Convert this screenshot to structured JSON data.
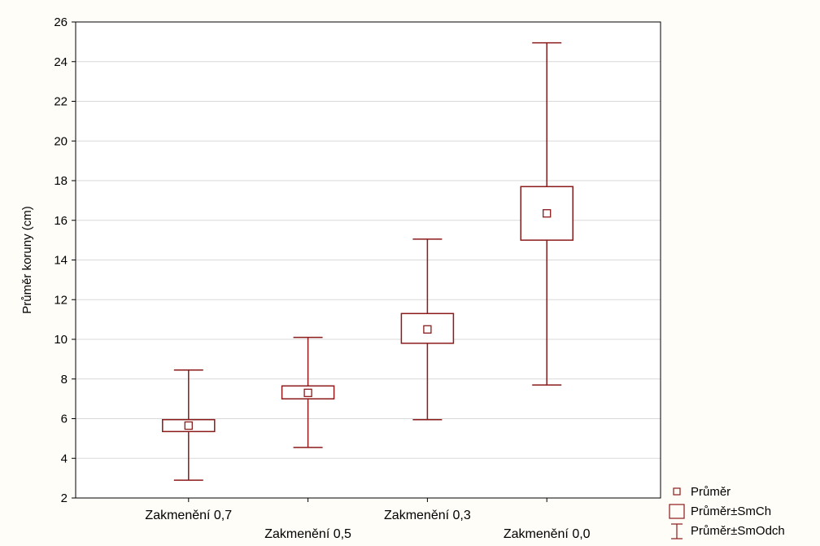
{
  "chart_data": {
    "type": "box",
    "ylabel": "Průměr koruny (cm)",
    "ylim": [
      2,
      26
    ],
    "yticks": [
      2,
      4,
      6,
      8,
      10,
      12,
      14,
      16,
      18,
      20,
      22,
      24,
      26
    ],
    "grid": true,
    "categories": [
      "Zakmenění 0,7",
      "Zakmenění 0,5",
      "Zakmenění 0,3",
      "Zakmenění 0,0"
    ],
    "series": [
      {
        "name": "Průměr",
        "values": [
          5.65,
          7.3,
          10.5,
          16.35
        ]
      },
      {
        "name": "Průměr±SmCh",
        "low": [
          5.35,
          7.0,
          9.8,
          15.0
        ],
        "high": [
          5.95,
          7.65,
          11.3,
          17.7
        ]
      },
      {
        "name": "Průměr±SmOdch",
        "low": [
          2.9,
          4.55,
          5.95,
          7.7
        ],
        "high": [
          8.45,
          10.1,
          15.05,
          24.95
        ]
      }
    ],
    "legend": {
      "position": "bottom-right",
      "entries": [
        "Průměr",
        "Průměr±SmCh",
        "Průměr±SmOdch"
      ]
    },
    "colors": {
      "mark": "#8b1a1a",
      "grid": "#d9d9d9",
      "axis": "#000000",
      "background": "#fffdf7",
      "plot_background": "#ffffff"
    }
  }
}
